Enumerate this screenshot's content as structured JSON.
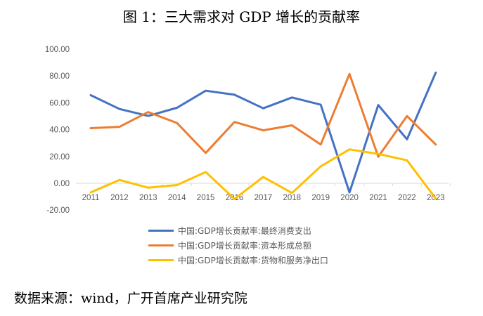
{
  "title": "图 1：三大需求对 GDP 增长的贡献率",
  "source_note": "数据来源：wind，广开首席产业研究院",
  "chart_data": {
    "type": "line",
    "title": "图 1：三大需求对 GDP 增长的贡献率",
    "xlabel": "",
    "ylabel": "",
    "ylim": [
      -20,
      100
    ],
    "yticks": [
      "-20.00",
      "0.00",
      "20.00",
      "40.00",
      "60.00",
      "80.00",
      "100.00"
    ],
    "categories": [
      "2011",
      "2012",
      "2013",
      "2014",
      "2015",
      "2016",
      "2017",
      "2018",
      "2019",
      "2020",
      "2021",
      "2022",
      "2023"
    ],
    "legend_position": "bottom",
    "grid": false,
    "series": [
      {
        "name": "中国:GDP增长贡献率:最终消费支出",
        "color": "#4472C4",
        "values": [
          65.7,
          55.4,
          50.2,
          56.3,
          69.0,
          66.0,
          55.9,
          64.0,
          58.6,
          -6.8,
          58.3,
          32.8,
          82.5
        ]
      },
      {
        "name": "中国:GDP增长贡献率:资本形成总额",
        "color": "#ED7D31",
        "values": [
          41.1,
          42.1,
          53.1,
          45.0,
          22.6,
          45.7,
          39.5,
          43.2,
          28.9,
          81.5,
          19.8,
          50.1,
          28.9
        ]
      },
      {
        "name": "中国:GDP增长贡献率:货物和服务净出口",
        "color": "#FFC000",
        "values": [
          -6.8,
          2.5,
          -3.3,
          -1.3,
          8.4,
          -11.7,
          4.7,
          -7.2,
          12.6,
          25.3,
          21.9,
          17.1,
          -11.4
        ]
      }
    ]
  }
}
